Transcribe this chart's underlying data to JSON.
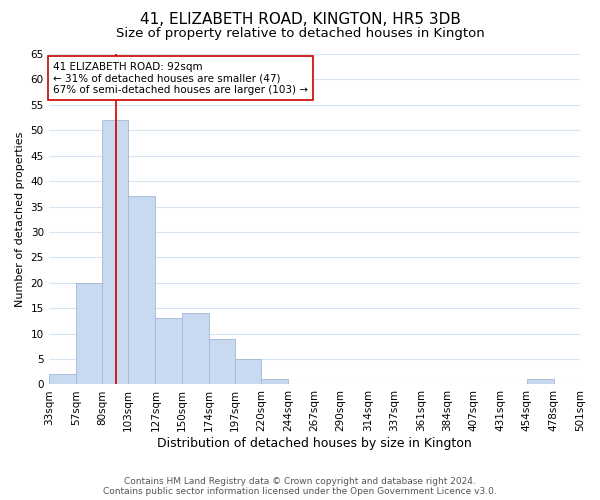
{
  "title": "41, ELIZABETH ROAD, KINGTON, HR5 3DB",
  "subtitle": "Size of property relative to detached houses in Kington",
  "xlabel": "Distribution of detached houses by size in Kington",
  "ylabel": "Number of detached properties",
  "bin_edges": [
    33,
    57,
    80,
    103,
    127,
    150,
    174,
    197,
    220,
    244,
    267,
    290,
    314,
    337,
    361,
    384,
    407,
    431,
    454,
    478,
    501
  ],
  "bar_heights": [
    2,
    20,
    52,
    37,
    13,
    14,
    9,
    5,
    1,
    0,
    0,
    0,
    0,
    0,
    0,
    0,
    0,
    0,
    1,
    0
  ],
  "bar_color": "#c8d9f0",
  "bar_edge_color": "#a0b8d8",
  "ylim": [
    0,
    65
  ],
  "yticks": [
    0,
    5,
    10,
    15,
    20,
    25,
    30,
    35,
    40,
    45,
    50,
    55,
    60,
    65
  ],
  "property_size": 92,
  "red_line_color": "#cc0000",
  "annotation_text": "41 ELIZABETH ROAD: 92sqm\n← 31% of detached houses are smaller (47)\n67% of semi-detached houses are larger (103) →",
  "annotation_box_color": "#ffffff",
  "annotation_box_edge": "#cc0000",
  "footer_text": "Contains HM Land Registry data © Crown copyright and database right 2024.\nContains public sector information licensed under the Open Government Licence v3.0.",
  "title_fontsize": 11,
  "subtitle_fontsize": 9.5,
  "xlabel_fontsize": 9,
  "ylabel_fontsize": 8,
  "tick_fontsize": 7.5,
  "footer_fontsize": 6.5,
  "background_color": "#ffffff",
  "grid_color": "#d8e4f0"
}
